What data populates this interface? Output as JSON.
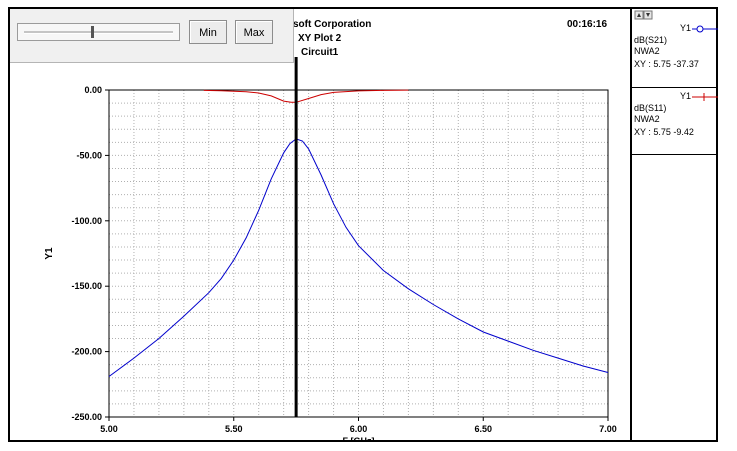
{
  "header": {
    "company": "soft Corporation",
    "plot_title": "XY Plot 2",
    "circuit": "Circuit1",
    "time": "00:16:16"
  },
  "toolbar": {
    "min_label": "Min",
    "max_label": "Max"
  },
  "legend": {
    "items": [
      {
        "axis": "Y1",
        "trace": "dB(S21)",
        "source": "NWA2",
        "readout": "XY : 5.75 -37.37",
        "color": "#0000cc",
        "marker": "circle"
      },
      {
        "axis": "Y1",
        "trace": "dB(S11)",
        "source": "NWA2",
        "readout": "XY : 5.75 -9.42",
        "color": "#cc0000",
        "marker": "plus"
      }
    ]
  },
  "colors": {
    "grid": "#b0b0b0",
    "s21": "#0000cc",
    "s11": "#cc0000",
    "marker": "#000000"
  },
  "chart_data": {
    "type": "line",
    "xlabel": "F [GHz]",
    "ylabel": "Y1",
    "xlim": [
      5.0,
      7.0
    ],
    "ylim": [
      -250,
      0
    ],
    "xticks": [
      5.0,
      5.5,
      6.0,
      6.5,
      7.0
    ],
    "xtick_labels": [
      "5.00",
      "5.50",
      "6.00",
      "6.50",
      "7.00"
    ],
    "yticks": [
      0,
      -50,
      -100,
      -150,
      -200,
      -250
    ],
    "ytick_labels": [
      "0.00",
      "-50.00",
      "-100.00",
      "-150.00",
      "-200.00",
      "-250.00"
    ],
    "grid": true,
    "marker_x": 5.75,
    "series": [
      {
        "name": "dB(S21)",
        "x": [
          5.0,
          5.1,
          5.2,
          5.3,
          5.4,
          5.45,
          5.5,
          5.55,
          5.6,
          5.65,
          5.7,
          5.725,
          5.75,
          5.775,
          5.8,
          5.85,
          5.9,
          5.95,
          6.0,
          6.1,
          6.2,
          6.3,
          6.4,
          6.5,
          6.6,
          6.7,
          6.8,
          6.9,
          7.0
        ],
        "values": [
          -219,
          -205,
          -190,
          -173,
          -155,
          -144,
          -130,
          -113,
          -92,
          -68,
          -48,
          -41,
          -37.37,
          -39,
          -45,
          -65,
          -87,
          -105,
          -119,
          -138,
          -152,
          -164,
          -175,
          -185,
          -192,
          -199,
          -205,
          -211,
          -216
        ]
      },
      {
        "name": "dB(S11)",
        "x": [
          5.38,
          5.45,
          5.5,
          5.55,
          5.6,
          5.65,
          5.7,
          5.73,
          5.75,
          5.8,
          5.85,
          5.9,
          6.0,
          6.1,
          6.2
        ],
        "values": [
          -0.3,
          -0.6,
          -0.9,
          -1.4,
          -2.3,
          -4.5,
          -8.5,
          -9.4,
          -9.42,
          -6.5,
          -3.5,
          -1.8,
          -0.7,
          -0.3,
          -0.1
        ]
      }
    ]
  }
}
